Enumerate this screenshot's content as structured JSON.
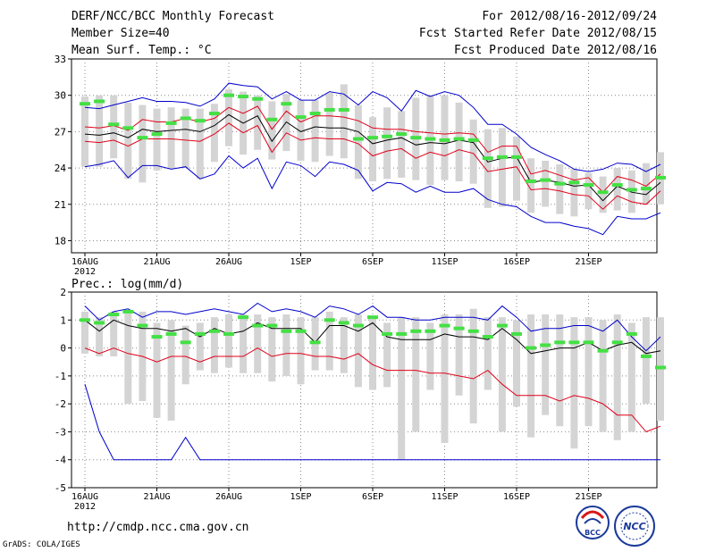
{
  "header": {
    "title": "DERF/NCC/BCC Monthly Forecast",
    "member_size": "Member Size=40",
    "variable": "Mean Surf. Temp.: °C",
    "period": "For 2012/08/16-2012/09/24",
    "start_date": "Fcst Started Refer Date 2012/08/15",
    "produced_date": "Fcst Produced Date 2012/08/16"
  },
  "footer": {
    "url": "http://cmdp.ncc.cma.gov.cn",
    "credit": "GrADS: COLA/IGES",
    "logo1_text": "BCC",
    "logo2_text": "NCC"
  },
  "colors": {
    "box": "#d4d4d4",
    "mean": "#000000",
    "std": "#e0001a",
    "range": "#0000cc",
    "marker": "#44e044",
    "grid": "#888888"
  },
  "chart_data": [
    {
      "type": "line",
      "title": "Mean Surf. Temp.: °C",
      "x_ticks": [
        "16AUG",
        "21AUG",
        "26AUG",
        "1SEP",
        "6SEP",
        "11SEP",
        "16SEP",
        "21SEP"
      ],
      "x_year_label": "2012",
      "ylim": [
        17,
        33
      ],
      "y_ticks": [
        18,
        21,
        24,
        27,
        30,
        33
      ],
      "series": [
        {
          "name": "max",
          "values": [
            24.1,
            24.3,
            24.6,
            23.2,
            24.2,
            24.2,
            23.9,
            24.1,
            23.1,
            23.5,
            25.0,
            24.0,
            24.8,
            22.3,
            24.5,
            24.2,
            23.3,
            24.5,
            24.3,
            23.8,
            22.1,
            22.8,
            22.7,
            22.0,
            22.5,
            22.0,
            22.0,
            22.3,
            21.4,
            21.0,
            20.8,
            20.0,
            19.5,
            19.5,
            19.2,
            19.0,
            18.5,
            20.0,
            19.8,
            19.8,
            20.3
          ]
        },
        {
          "name": "upper",
          "values": [
            29.0,
            28.9,
            29.2,
            29.5,
            29.8,
            29.5,
            29.5,
            29.4,
            29.1,
            29.7,
            31.0,
            30.8,
            30.7,
            29.7,
            30.3,
            29.6,
            29.6,
            30.3,
            30.1,
            29.2,
            30.3,
            29.8,
            28.7,
            30.4,
            29.9,
            30.3,
            30.0,
            29.0,
            27.6,
            27.6,
            26.8,
            25.7,
            25.1,
            24.6,
            23.9,
            23.7,
            23.9,
            24.4,
            24.3,
            23.7,
            24.3
          ]
        },
        {
          "name": "std_hi",
          "values": [
            27.4,
            27.3,
            27.5,
            27.1,
            28.0,
            27.8,
            27.8,
            28.1,
            27.8,
            28.1,
            29.0,
            28.5,
            29.1,
            27.2,
            28.7,
            27.8,
            28.3,
            28.3,
            28.2,
            27.9,
            27.3,
            27.2,
            27.2,
            27.0,
            26.9,
            26.8,
            26.9,
            26.8,
            25.3,
            25.8,
            25.8,
            23.5,
            23.8,
            23.4,
            23.0,
            23.2,
            22.0,
            23.3,
            23.0,
            22.5,
            23.5
          ]
        },
        {
          "name": "mean",
          "values": [
            26.8,
            26.7,
            26.9,
            26.5,
            27.2,
            27.0,
            27.1,
            27.2,
            27.0,
            27.5,
            28.4,
            27.7,
            28.3,
            26.2,
            27.8,
            27.0,
            27.4,
            27.3,
            27.3,
            27.0,
            26.0,
            26.3,
            26.5,
            25.9,
            26.1,
            26.0,
            26.3,
            26.1,
            24.5,
            24.8,
            24.9,
            22.8,
            23.0,
            22.8,
            22.5,
            22.6,
            21.3,
            22.5,
            22.0,
            21.8,
            22.8
          ]
        },
        {
          "name": "std_lo",
          "values": [
            26.2,
            26.1,
            26.3,
            25.8,
            26.4,
            26.4,
            26.4,
            26.3,
            26.2,
            26.8,
            27.7,
            26.9,
            27.5,
            25.3,
            26.9,
            26.3,
            26.5,
            26.4,
            26.4,
            26.0,
            25.0,
            25.4,
            25.6,
            24.8,
            25.3,
            25.0,
            25.5,
            25.2,
            23.7,
            23.9,
            24.1,
            22.2,
            22.3,
            22.1,
            21.8,
            21.7,
            20.6,
            21.7,
            21.2,
            21.0,
            22.1
          ]
        },
        {
          "name": "median_marker",
          "values": [
            29.3,
            29.5,
            27.6,
            27.3,
            26.5,
            26.8,
            27.7,
            28.1,
            27.9,
            28.5,
            30.0,
            29.9,
            29.7,
            28.0,
            29.3,
            28.2,
            28.5,
            28.8,
            28.8,
            26.4,
            26.5,
            26.6,
            26.8,
            26.5,
            26.4,
            26.3,
            26.4,
            26.3,
            24.8,
            24.9,
            24.9,
            22.9,
            23.0,
            22.7,
            22.8,
            22.6,
            22.0,
            22.6,
            22.2,
            22.3,
            23.2
          ]
        }
      ],
      "boxes": [
        [
          24.1,
          29.9
        ],
        [
          24.1,
          30.0
        ],
        [
          24.8,
          30.0
        ],
        [
          23.1,
          29.4
        ],
        [
          22.8,
          29.2
        ],
        [
          23.8,
          28.9
        ],
        [
          23.9,
          29.0
        ],
        [
          24.0,
          28.9
        ],
        [
          23.1,
          28.9
        ],
        [
          24.5,
          29.3
        ],
        [
          25.8,
          30.5
        ],
        [
          25.1,
          30.3
        ],
        [
          25.5,
          30.0
        ],
        [
          24.7,
          29.5
        ],
        [
          25.4,
          30.1
        ],
        [
          24.6,
          29.6
        ],
        [
          24.5,
          29.6
        ],
        [
          25.0,
          30.2
        ],
        [
          24.8,
          30.9
        ],
        [
          23.1,
          29.2
        ],
        [
          22.9,
          28.2
        ],
        [
          23.1,
          29.0
        ],
        [
          23.2,
          28.7
        ],
        [
          23.0,
          29.8
        ],
        [
          22.6,
          30.0
        ],
        [
          23.0,
          30.0
        ],
        [
          22.9,
          29.4
        ],
        [
          22.7,
          28.0
        ],
        [
          20.7,
          27.2
        ],
        [
          20.8,
          27.3
        ],
        [
          21.3,
          26.6
        ],
        [
          20.3,
          24.8
        ],
        [
          20.8,
          24.6
        ],
        [
          20.2,
          24.3
        ],
        [
          20.0,
          23.9
        ],
        [
          20.6,
          23.6
        ],
        [
          20.3,
          23.3
        ],
        [
          20.5,
          24.0
        ],
        [
          20.3,
          23.8
        ],
        [
          21.0,
          24.4
        ],
        [
          21.0,
          25.3
        ]
      ]
    },
    {
      "type": "line",
      "title": "Prec.: log(mm/d)",
      "x_ticks": [
        "16AUG",
        "21AUG",
        "26AUG",
        "1SEP",
        "6SEP",
        "11SEP",
        "16SEP",
        "21SEP"
      ],
      "x_year_label": "2012",
      "ylim": [
        -5,
        2
      ],
      "y_ticks": [
        -5,
        -4,
        -3,
        -2,
        -1,
        0,
        1,
        2
      ],
      "series": [
        {
          "name": "min",
          "values": [
            -1.3,
            -3.0,
            -4.0,
            -4.0,
            -4.0,
            -4.0,
            -4.0,
            -3.2,
            -4.0,
            -4.0,
            -4.0,
            -4.0,
            -4.0,
            -4.0,
            -4.0,
            -4.0,
            -4.0,
            -4.0,
            -4.0,
            -4.0,
            -4.0,
            -4.0,
            -4.0,
            -4.0,
            -4.0,
            -4.0,
            -4.0,
            -4.0,
            -4.0,
            -4.0,
            -4.0,
            -4.0,
            -4.0,
            -4.0,
            -4.0,
            -4.0,
            -4.0,
            -4.0,
            -4.0,
            -4.0,
            -4.0
          ]
        },
        {
          "name": "std_lo",
          "values": [
            0.0,
            -0.2,
            0.0,
            -0.2,
            -0.3,
            -0.5,
            -0.3,
            -0.3,
            -0.5,
            -0.3,
            -0.3,
            -0.3,
            0.0,
            -0.3,
            -0.2,
            -0.2,
            -0.3,
            -0.3,
            -0.4,
            -0.2,
            -0.6,
            -0.8,
            -0.8,
            -0.8,
            -0.9,
            -0.9,
            -1.0,
            -1.1,
            -0.8,
            -1.3,
            -1.7,
            -1.7,
            -1.7,
            -1.9,
            -1.7,
            -1.8,
            -2.0,
            -2.4,
            -2.4,
            -3.0,
            -2.8
          ]
        },
        {
          "name": "mean",
          "values": [
            1.0,
            0.6,
            1.0,
            0.8,
            0.7,
            0.7,
            0.6,
            0.7,
            0.4,
            0.7,
            0.5,
            0.6,
            0.9,
            0.7,
            0.7,
            0.7,
            0.2,
            0.8,
            0.8,
            0.6,
            0.9,
            0.4,
            0.3,
            0.3,
            0.3,
            0.5,
            0.4,
            0.4,
            0.3,
            0.7,
            0.3,
            -0.2,
            -0.1,
            0.0,
            0.0,
            0.2,
            -0.1,
            0.1,
            0.2,
            -0.2,
            -0.1
          ]
        },
        {
          "name": "upper",
          "values": [
            1.5,
            1.0,
            1.3,
            1.4,
            1.1,
            1.3,
            1.3,
            1.2,
            1.3,
            1.4,
            1.3,
            1.2,
            1.6,
            1.3,
            1.4,
            1.3,
            1.1,
            1.5,
            1.4,
            1.2,
            1.5,
            1.1,
            1.1,
            1.0,
            1.0,
            1.1,
            1.1,
            1.1,
            1.0,
            1.5,
            1.1,
            0.6,
            0.7,
            0.7,
            0.8,
            0.8,
            0.6,
            1.0,
            0.4,
            -0.1,
            0.4
          ]
        },
        {
          "name": "median_marker",
          "values": [
            1.0,
            0.9,
            1.2,
            1.3,
            0.8,
            0.4,
            0.5,
            0.2,
            0.5,
            0.6,
            0.5,
            1.1,
            0.8,
            0.8,
            0.6,
            0.6,
            0.2,
            1.0,
            0.9,
            0.8,
            1.1,
            0.5,
            0.5,
            0.6,
            0.6,
            0.8,
            0.7,
            0.6,
            0.4,
            0.8,
            0.5,
            0.0,
            0.1,
            0.2,
            0.2,
            0.2,
            -0.1,
            0.2,
            0.5,
            -0.3,
            -0.7
          ]
        }
      ],
      "boxes": [
        [
          -0.2,
          1.3
        ],
        [
          -0.3,
          1.1
        ],
        [
          -0.3,
          1.3
        ],
        [
          -2.0,
          1.3
        ],
        [
          -1.9,
          1.3
        ],
        [
          -2.5,
          0.9
        ],
        [
          -2.6,
          1.0
        ],
        [
          -1.3,
          0.8
        ],
        [
          -0.8,
          0.9
        ],
        [
          -0.9,
          1.1
        ],
        [
          -0.7,
          1.2
        ],
        [
          -0.9,
          1.2
        ],
        [
          -0.9,
          1.2
        ],
        [
          -1.2,
          1.1
        ],
        [
          -1.0,
          1.2
        ],
        [
          -1.3,
          1.1
        ],
        [
          -0.8,
          1.1
        ],
        [
          -0.8,
          1.3
        ],
        [
          -0.9,
          1.1
        ],
        [
          -1.4,
          1.2
        ],
        [
          -1.5,
          1.1
        ],
        [
          -1.4,
          0.9
        ],
        [
          -4.0,
          1.1
        ],
        [
          -3.0,
          1.1
        ],
        [
          -1.5,
          0.9
        ],
        [
          -3.4,
          1.2
        ],
        [
          -1.7,
          1.2
        ],
        [
          -2.7,
          1.4
        ],
        [
          -1.5,
          1.1
        ],
        [
          -3.0,
          1.1
        ],
        [
          -2.1,
          1.0
        ],
        [
          -3.2,
          1.2
        ],
        [
          -2.4,
          1.2
        ],
        [
          -2.8,
          1.2
        ],
        [
          -3.6,
          1.1
        ],
        [
          -2.8,
          1.1
        ],
        [
          -3.0,
          1.0
        ],
        [
          -3.3,
          1.2
        ],
        [
          -3.0,
          0.9
        ],
        [
          -2.0,
          1.1
        ],
        [
          -2.6,
          1.1
        ]
      ]
    }
  ]
}
